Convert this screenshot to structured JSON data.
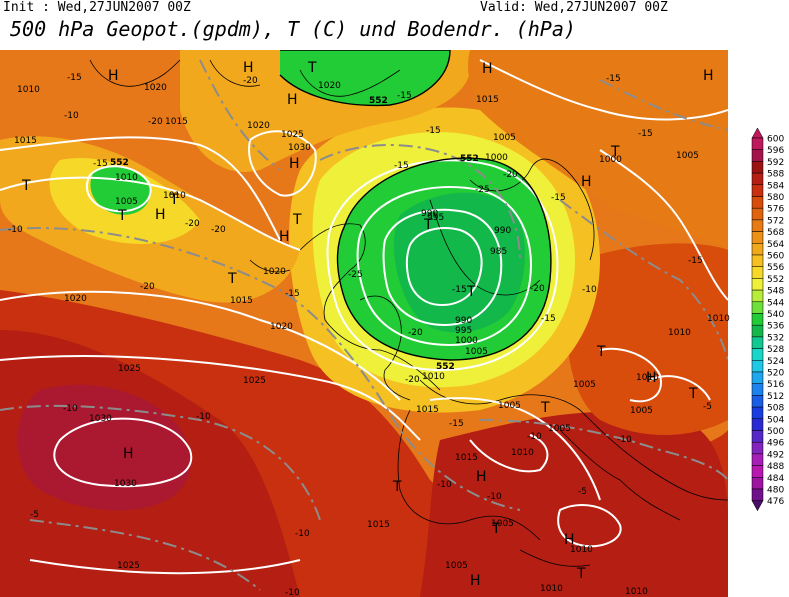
{
  "header": {
    "init": "Init : Wed,27JUN2007 00Z",
    "valid": "Valid: Wed,27JUN2007 00Z",
    "title": "500 hPa Geopot.(gpdm), T (C) und Bodendr. (hPa)"
  },
  "colorbar": {
    "levels": [
      "600",
      "596",
      "592",
      "588",
      "584",
      "580",
      "576",
      "572",
      "568",
      "564",
      "560",
      "556",
      "552",
      "548",
      "544",
      "540",
      "536",
      "532",
      "528",
      "524",
      "520",
      "516",
      "512",
      "508",
      "504",
      "500",
      "496",
      "492",
      "488",
      "484",
      "480",
      "476"
    ],
    "colors": [
      "#c0185c",
      "#a3154a",
      "#9c1212",
      "#b51e12",
      "#c83010",
      "#d84c0c",
      "#e0640e",
      "#e67a14",
      "#ec9018",
      "#f2a81c",
      "#f4c022",
      "#f6d828",
      "#eef03a",
      "#b8ec3a",
      "#6ee03a",
      "#22cc36",
      "#12b84a",
      "#10c890",
      "#18d6c8",
      "#20c8e8",
      "#1ea6ee",
      "#1c82ee",
      "#1a5ee8",
      "#183ce0",
      "#2a2ad4",
      "#5628c8",
      "#8424c0",
      "#a81eb8",
      "#b818b0",
      "#9c14a0",
      "#70108a",
      "#4a0c6a"
    ]
  },
  "map": {
    "pressure_labels": [
      "1010",
      "1015",
      "1020",
      "1025",
      "1030",
      "1005",
      "1000",
      "995",
      "990",
      "985"
    ],
    "temp_labels": [
      "-5",
      "-10",
      "-15",
      "-20",
      "-25"
    ],
    "geopot_labels": [
      "552"
    ],
    "centers": {
      "high": "H",
      "low": "T"
    }
  }
}
